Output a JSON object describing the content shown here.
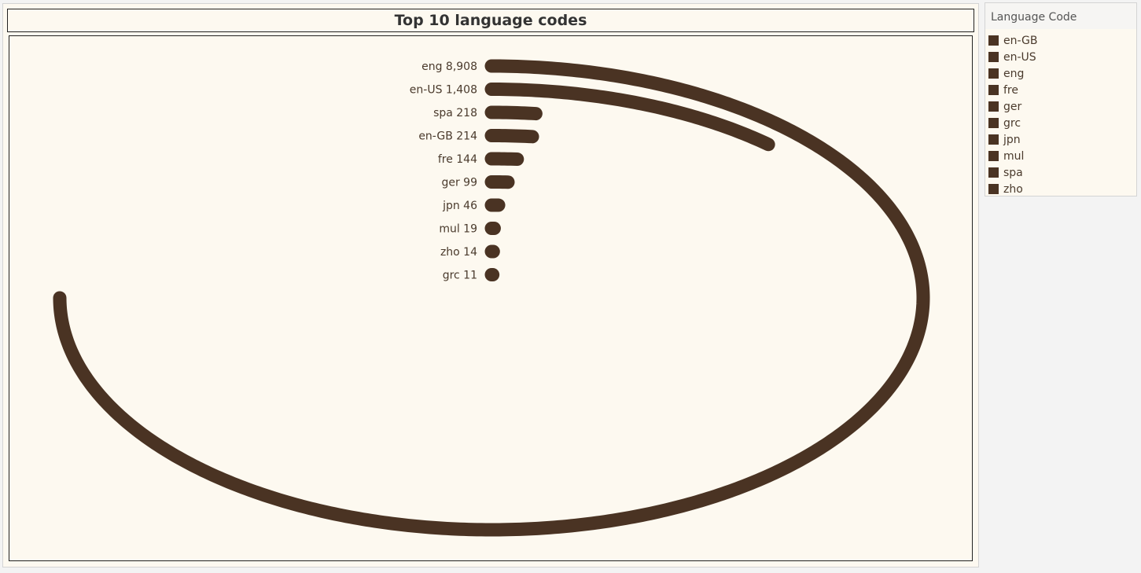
{
  "legend": {
    "title": "Language Code",
    "items": [
      "en-GB",
      "en-US",
      "eng",
      "fre",
      "ger",
      "grc",
      "jpn",
      "mul",
      "spa",
      "zho"
    ]
  },
  "colors": {
    "series": "#4a3323",
    "background": "#fdf9f0",
    "text": "#4a3a2c"
  },
  "chart_data": {
    "type": "radial-bar",
    "title": "Top 10 language codes",
    "categories": [
      "eng",
      "en-US",
      "spa",
      "en-GB",
      "fre",
      "ger",
      "jpn",
      "mul",
      "zho",
      "grc"
    ],
    "values": [
      8908,
      1408,
      218,
      214,
      144,
      99,
      46,
      19,
      14,
      11
    ],
    "value_labels": [
      "8,908",
      "1,408",
      "218",
      "214",
      "144",
      "99",
      "46",
      "19",
      "14",
      "11"
    ],
    "grid": false,
    "legend_position": "right"
  }
}
